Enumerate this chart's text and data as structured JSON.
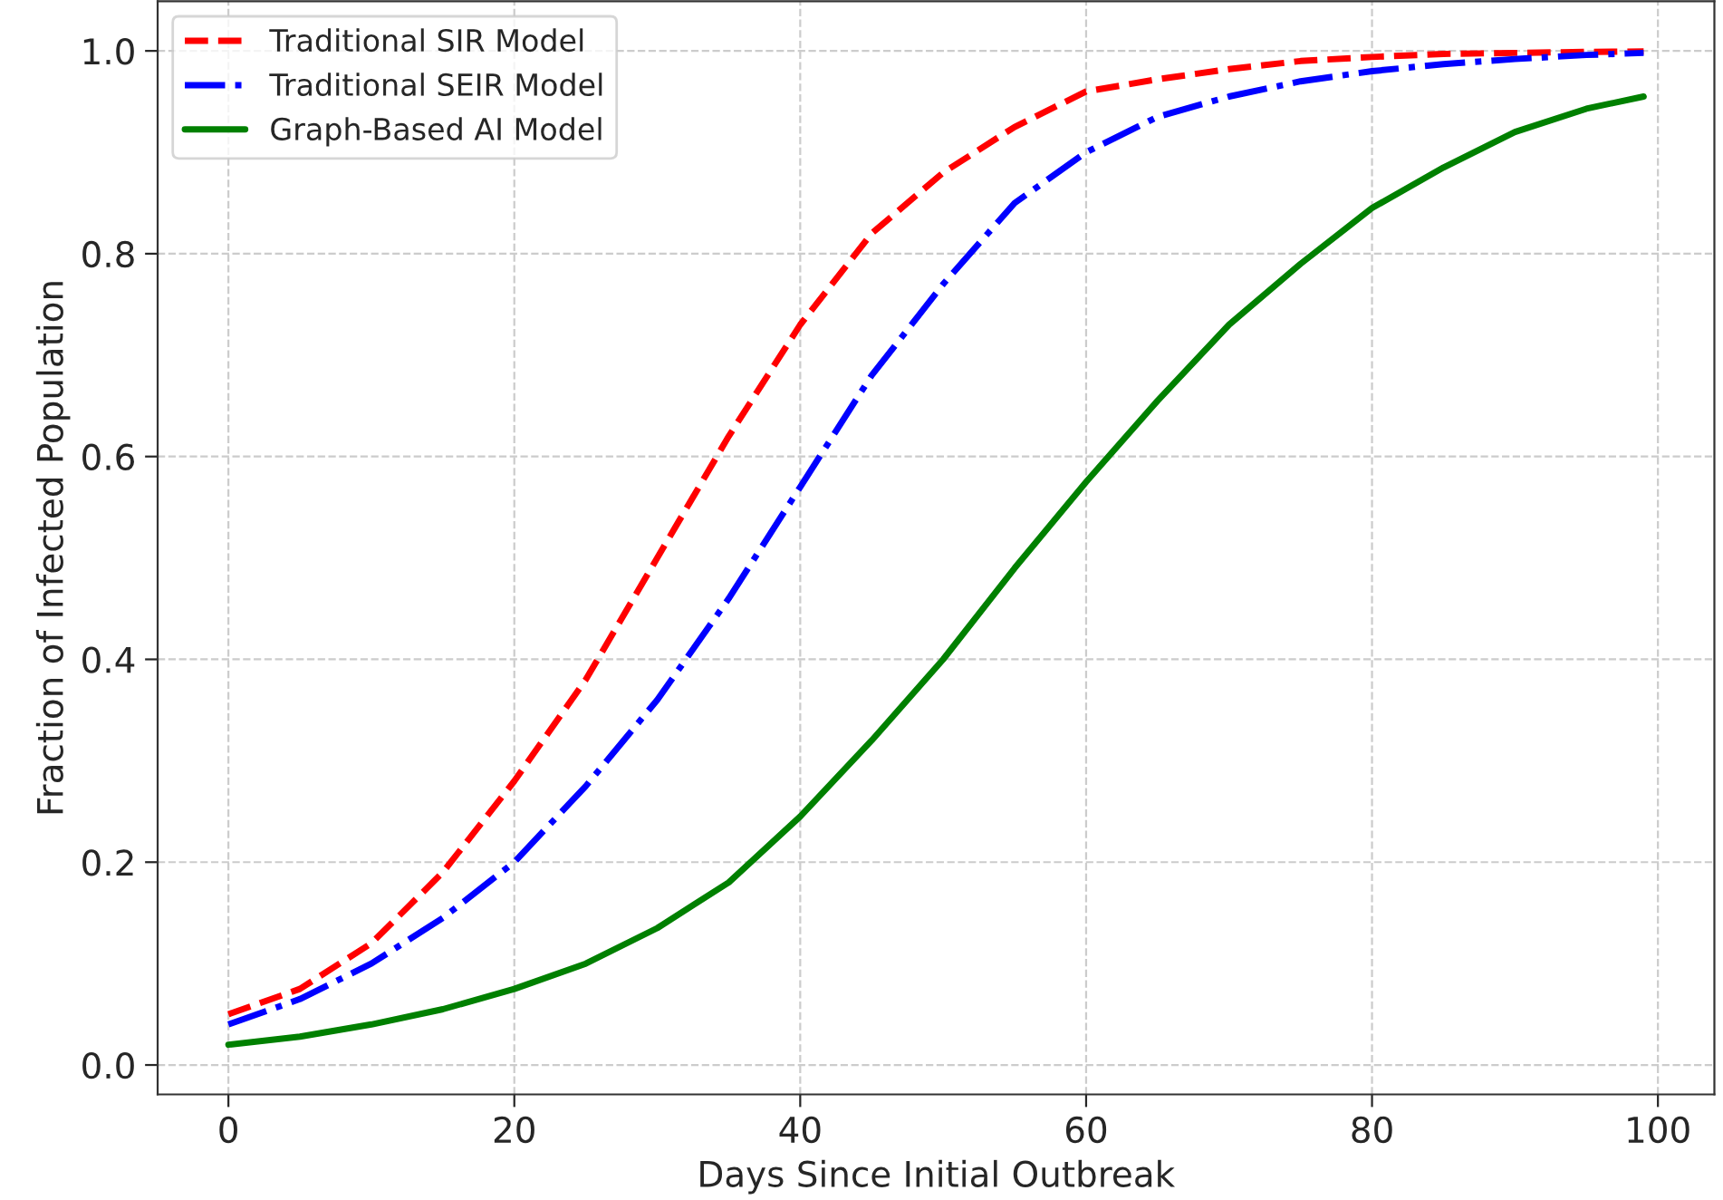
{
  "chart_data": {
    "type": "line",
    "xlabel": "Days Since Initial Outbreak",
    "ylabel": "Fraction of Infected Population",
    "x": [
      0,
      5,
      10,
      15,
      20,
      25,
      30,
      35,
      40,
      45,
      50,
      55,
      60,
      65,
      70,
      75,
      80,
      85,
      90,
      95,
      99
    ],
    "series": [
      {
        "name": "Traditional SIR Model",
        "color": "#ff0000",
        "line_style": "dashed",
        "values": [
          0.05,
          0.075,
          0.12,
          0.19,
          0.28,
          0.38,
          0.5,
          0.62,
          0.73,
          0.82,
          0.88,
          0.925,
          0.96,
          0.972,
          0.982,
          0.99,
          0.994,
          0.997,
          0.998,
          0.999,
          0.9995
        ]
      },
      {
        "name": "Traditional SEIR Model",
        "color": "#0000ff",
        "line_style": "dashdot",
        "values": [
          0.04,
          0.065,
          0.1,
          0.145,
          0.2,
          0.275,
          0.36,
          0.46,
          0.57,
          0.68,
          0.77,
          0.85,
          0.9,
          0.935,
          0.955,
          0.97,
          0.98,
          0.987,
          0.992,
          0.996,
          0.998
        ]
      },
      {
        "name": "Graph-Based AI Model",
        "color": "#008000",
        "line_style": "solid",
        "values": [
          0.02,
          0.028,
          0.04,
          0.055,
          0.075,
          0.1,
          0.135,
          0.18,
          0.245,
          0.32,
          0.4,
          0.49,
          0.575,
          0.655,
          0.73,
          0.79,
          0.845,
          0.885,
          0.92,
          0.943,
          0.955
        ]
      }
    ],
    "xlim": [
      -4.95,
      103.95
    ],
    "xticks": [
      0,
      20,
      40,
      60,
      80,
      100
    ],
    "ylim": [
      -0.029,
      1.049
    ],
    "yticks": [
      {
        "value": 0,
        "label": "0.0"
      },
      {
        "value": 0.2,
        "label": "0.2"
      },
      {
        "value": 0.4,
        "label": "0.4"
      },
      {
        "value": 0.6,
        "label": "0.6"
      },
      {
        "value": 0.8,
        "label": "0.8"
      },
      {
        "value": 1.0,
        "label": "1.0"
      }
    ],
    "grid": true,
    "legend": "top left",
    "marker": "none"
  }
}
